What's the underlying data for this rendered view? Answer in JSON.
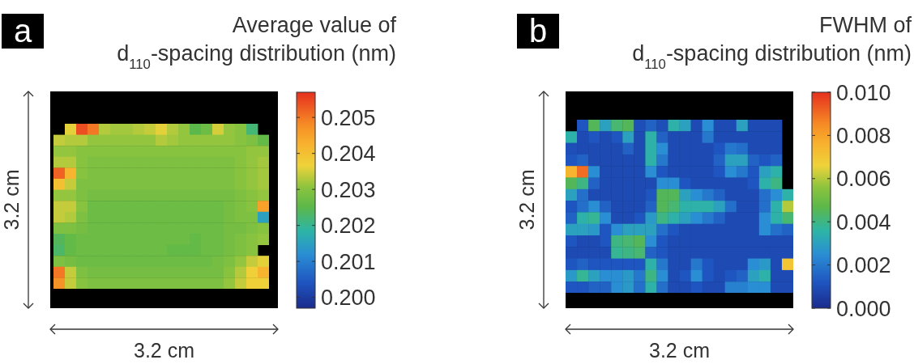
{
  "chart_data": [
    {
      "type": "heatmap",
      "clabel": "Average value of\nd$_{110}$-spacing distribution (nm)",
      "xlabel": "3.2 cm",
      "ylabel": "3.2 cm",
      "annotations": [
        "a"
      ],
      "categories": [
        null,
        null,
        null,
        null,
        null,
        null,
        null,
        null,
        null,
        null,
        null,
        null,
        null,
        null,
        null,
        null,
        null,
        null,
        null
      ],
      "y_categories": [
        null,
        null,
        null,
        null,
        null,
        null,
        null,
        null,
        null,
        null,
        null,
        null,
        null,
        null,
        null
      ],
      "clim": [
        0.1997,
        0.2057
      ],
      "cticks": [
        {
          "value": 0.2,
          "label": "0.200"
        },
        0.201,
        0.202,
        0.203,
        0.204,
        0.205
      ],
      "cells": [
        [
          null,
          0.2036,
          0.2054,
          0.205,
          0.2033,
          0.2032,
          0.2032,
          0.2033,
          0.2034,
          0.2036,
          0.2033,
          0.2031,
          0.2025,
          0.2027,
          0.2035,
          0.2031,
          0.203,
          0.2022,
          null
        ],
        [
          0.2034,
          0.2033,
          0.2033,
          0.2031,
          0.2031,
          0.2031,
          0.2031,
          0.2031,
          0.2031,
          0.2033,
          0.2032,
          0.2031,
          0.2031,
          0.2031,
          0.2031,
          0.2031,
          0.203,
          0.2029,
          0.2026
        ],
        [
          0.2031,
          0.2031,
          0.203,
          0.203,
          0.203,
          0.203,
          0.203,
          0.203,
          0.203,
          0.203,
          0.203,
          0.203,
          0.203,
          0.203,
          0.203,
          0.203,
          0.203,
          0.2031,
          0.2031
        ],
        [
          0.2033,
          0.2033,
          0.203,
          0.2029,
          0.2029,
          0.2029,
          0.2029,
          0.2029,
          0.2029,
          0.2029,
          0.2029,
          0.2029,
          0.2029,
          0.2029,
          0.2029,
          0.2029,
          0.203,
          0.2031,
          0.2032
        ],
        [
          0.2052,
          0.2042,
          0.203,
          0.2029,
          0.2029,
          0.2029,
          0.2029,
          0.2029,
          0.2029,
          0.2029,
          0.2029,
          0.2029,
          0.2029,
          0.2029,
          0.2029,
          0.2029,
          0.203,
          0.2031,
          0.2032
        ],
        [
          0.204,
          0.2034,
          0.2029,
          0.2029,
          0.2029,
          0.2029,
          0.2029,
          0.2029,
          0.2029,
          0.2029,
          0.2029,
          0.2029,
          0.2029,
          0.2029,
          0.2029,
          0.2029,
          0.203,
          0.2031,
          0.2032
        ],
        [
          0.2031,
          0.2031,
          0.2029,
          0.2028,
          0.2028,
          0.2028,
          0.2028,
          0.2028,
          0.2028,
          0.2028,
          0.2028,
          0.2028,
          0.2028,
          0.2028,
          0.2028,
          0.2028,
          0.2029,
          0.203,
          0.2031
        ],
        [
          0.2034,
          0.2034,
          0.203,
          0.2027,
          0.2027,
          0.2027,
          0.2027,
          0.2027,
          0.2027,
          0.2027,
          0.2027,
          0.2027,
          0.2027,
          0.2027,
          0.2027,
          0.2028,
          0.2029,
          0.203,
          0.2045
        ],
        [
          0.2034,
          0.2033,
          0.2029,
          0.2027,
          0.2027,
          0.2027,
          0.2027,
          0.2027,
          0.2027,
          0.2027,
          0.2027,
          0.2027,
          0.2027,
          0.2027,
          0.2027,
          0.2028,
          0.2029,
          0.2029,
          0.2015
        ],
        [
          0.2029,
          0.2029,
          0.2028,
          0.2027,
          0.2027,
          0.2027,
          0.2027,
          0.2027,
          0.2027,
          0.2027,
          0.2027,
          0.2027,
          0.2027,
          0.2027,
          0.2027,
          0.2028,
          0.2028,
          0.2029,
          0.203
        ],
        [
          0.2024,
          0.2026,
          0.2027,
          0.2027,
          0.2027,
          0.2027,
          0.2027,
          0.2027,
          0.2027,
          0.2027,
          0.2027,
          0.2027,
          0.2026,
          0.2027,
          0.2027,
          0.2028,
          0.2029,
          0.203,
          0.2031
        ],
        [
          0.2023,
          0.2026,
          0.2027,
          0.2027,
          0.2027,
          0.2027,
          0.2027,
          0.2027,
          0.2027,
          0.2027,
          0.2026,
          0.2026,
          0.2026,
          0.2027,
          0.2027,
          0.2028,
          0.2029,
          0.203,
          null
        ],
        [
          0.2029,
          0.2028,
          0.2027,
          0.2027,
          0.2027,
          0.2027,
          0.2027,
          0.2027,
          0.2027,
          0.2027,
          0.2027,
          0.2027,
          0.2027,
          0.2027,
          0.2028,
          0.2029,
          0.2031,
          0.2034,
          0.2036
        ],
        [
          0.205,
          0.2034,
          0.2029,
          0.2028,
          0.2028,
          0.2028,
          0.2028,
          0.2028,
          0.2028,
          0.2028,
          0.2028,
          0.2028,
          0.2028,
          0.2028,
          0.2028,
          0.203,
          0.2033,
          0.2037,
          0.2042
        ],
        [
          0.2047,
          0.2034,
          0.203,
          0.2029,
          0.2029,
          0.2029,
          0.2029,
          0.2029,
          0.2029,
          0.2029,
          0.2029,
          0.2029,
          0.2029,
          0.2029,
          0.2029,
          0.2031,
          0.2034,
          0.2037,
          0.2037
        ]
      ]
    },
    {
      "type": "heatmap",
      "clabel": "FWHM of\nd$_{110}$-spacing distribution (nm)",
      "xlabel": "3.2 cm",
      "ylabel": "3.2 cm",
      "annotations": [
        "b"
      ],
      "categories": [
        null,
        null,
        null,
        null,
        null,
        null,
        null,
        null,
        null,
        null,
        null,
        null,
        null,
        null,
        null,
        null,
        null,
        null,
        null,
        null
      ],
      "y_categories": [
        null,
        null,
        null,
        null,
        null,
        null,
        null,
        null,
        null,
        null,
        null,
        null,
        null,
        null,
        null
      ],
      "clim": [
        0,
        0.01
      ],
      "cticks": [
        {
          "value": 0,
          "label": "0.000"
        },
        0.002,
        0.004,
        0.006,
        0.008,
        {
          "value": 0.01,
          "label": "0.010"
        }
      ],
      "cells": [
        [
          null,
          0.0012,
          0.0045,
          0.003,
          0.0042,
          0.0045,
          0.001,
          0.0015,
          0.001,
          0.0035,
          0.003,
          0.0009,
          0.0025,
          0.0009,
          0.0009,
          0.003,
          0.0009,
          0.0009,
          0.0009,
          null
        ],
        [
          0.0035,
          0.0009,
          0.0012,
          0.0009,
          0.0012,
          0.003,
          0.0009,
          0.0035,
          0.0015,
          0.0009,
          0.0009,
          0.0009,
          0.002,
          0.0009,
          0.0009,
          0.0009,
          0.0009,
          0.0009,
          0.0009,
          null
        ],
        [
          0.001,
          0.0009,
          0.0009,
          0.0009,
          0.0009,
          0.0015,
          0.0009,
          0.0035,
          0.0025,
          0.0009,
          0.0009,
          0.0009,
          0.0009,
          0.0012,
          0.002,
          0.0018,
          0.0009,
          0.0009,
          0.0009,
          null
        ],
        [
          0.0012,
          0.0015,
          0.0009,
          0.0009,
          0.0009,
          0.0009,
          0.0009,
          0.0035,
          0.002,
          0.0009,
          0.0009,
          0.0009,
          0.0009,
          0.0015,
          0.003,
          0.003,
          0.0015,
          0.0012,
          0.0015,
          null
        ],
        [
          0.0075,
          0.009,
          0.0025,
          0.0009,
          0.0009,
          0.0009,
          0.0009,
          0.0025,
          0.0012,
          0.0009,
          0.0009,
          0.0009,
          0.0009,
          0.0012,
          0.0025,
          0.002,
          0.0012,
          0.003,
          0.0035,
          null
        ],
        [
          0.0045,
          0.004,
          0.0015,
          0.0009,
          0.0009,
          0.0009,
          0.0009,
          0.0009,
          0.0025,
          0.0025,
          0.0012,
          0.0009,
          0.0009,
          0.0009,
          0.0009,
          0.0009,
          0.0012,
          0.0035,
          0.004,
          null
        ],
        [
          0.003,
          0.0018,
          0.0009,
          0.0009,
          0.0009,
          0.0009,
          0.0009,
          0.0012,
          0.0045,
          0.0045,
          0.003,
          0.0025,
          0.002,
          0.0015,
          0.0009,
          0.0009,
          0.0009,
          0.0018,
          0.0025,
          0.0035
        ],
        [
          0.0012,
          0.0018,
          0.0025,
          0.0015,
          0.0009,
          0.0009,
          0.0009,
          0.0015,
          0.0045,
          0.0042,
          0.0035,
          0.0035,
          0.0035,
          0.003,
          0.0018,
          0.0009,
          0.0009,
          0.0018,
          0.0035,
          0.006
        ],
        [
          0.0015,
          0.0035,
          0.0038,
          0.0025,
          0.0009,
          0.0009,
          0.0012,
          0.0028,
          0.004,
          0.0035,
          0.003,
          0.0025,
          0.002,
          0.0015,
          0.0009,
          0.0009,
          0.0009,
          0.0025,
          0.0035,
          0.0042
        ],
        [
          0.003,
          0.003,
          0.0028,
          0.0012,
          0.0025,
          0.003,
          0.003,
          0.003,
          0.0018,
          0.0012,
          0.0009,
          0.0009,
          0.0009,
          0.0009,
          0.0009,
          0.0009,
          0.0009,
          0.0025,
          0.0018,
          0.0015
        ],
        [
          0.0012,
          0.0009,
          0.0009,
          0.0012,
          0.004,
          0.0042,
          0.0045,
          0.0025,
          0.0012,
          0.0009,
          0.0009,
          0.0009,
          0.0009,
          0.0009,
          0.0009,
          0.0009,
          0.0009,
          0.0009,
          0.0009,
          0.0009
        ],
        [
          0.0009,
          0.0009,
          0.0009,
          0.0009,
          0.0038,
          0.004,
          0.0042,
          0.0015,
          0.0012,
          0.0009,
          0.0009,
          0.0009,
          0.0009,
          0.0009,
          0.0009,
          0.0009,
          0.0009,
          0.0009,
          0.0009,
          0.0009
        ],
        [
          0.0012,
          0.0015,
          0.0012,
          0.0012,
          0.0012,
          0.0012,
          0.0012,
          0.0035,
          0.002,
          0.0009,
          0.0009,
          0.002,
          0.0012,
          0.0009,
          0.0009,
          0.0009,
          0.0025,
          0.0028,
          0.0009,
          0.007
        ],
        [
          0.0028,
          0.0038,
          0.003,
          0.0025,
          0.0025,
          0.0028,
          0.002,
          0.004,
          0.0025,
          0.0009,
          0.0012,
          0.0025,
          0.0012,
          0.0009,
          0.0012,
          0.0015,
          0.003,
          0.0035,
          0.0009,
          0.0009
        ],
        [
          0.0012,
          0.0012,
          0.0015,
          0.0015,
          0.0025,
          0.0028,
          0.0018,
          0.0035,
          0.0018,
          0.0009,
          0.0009,
          0.0012,
          0.0009,
          0.0009,
          0.0022,
          0.0022,
          0.0025,
          0.0025,
          0.0009,
          0.0009
        ]
      ]
    }
  ]
}
